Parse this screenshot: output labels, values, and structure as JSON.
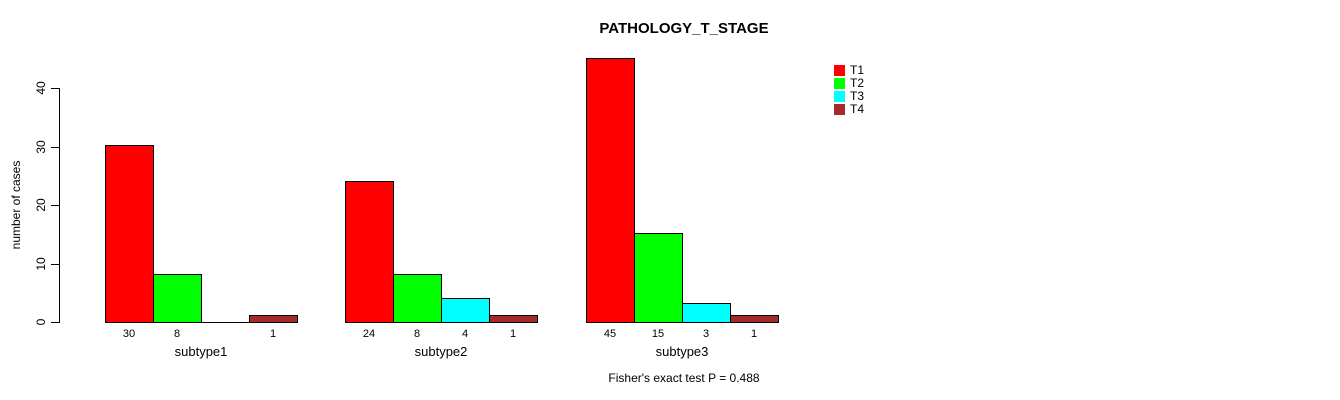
{
  "chart_data": {
    "type": "bar",
    "layout": "grouped",
    "title": "PATHOLOGY_T_STAGE",
    "ylabel": "number of cases",
    "xlabel": "",
    "categories": [
      "subtype1",
      "subtype2",
      "subtype3"
    ],
    "series": [
      {
        "name": "T1",
        "color": "#FF0000",
        "values": [
          30,
          24,
          45
        ]
      },
      {
        "name": "T2",
        "color": "#00FF00",
        "values": [
          8,
          8,
          15
        ]
      },
      {
        "name": "T3",
        "color": "#00FFFF",
        "values": [
          0,
          4,
          3
        ]
      },
      {
        "name": "T4",
        "color": "#A52A2A",
        "values": [
          1,
          1,
          1
        ]
      }
    ],
    "value_labels": [
      [
        "30",
        "8",
        "",
        "1"
      ],
      [
        "24",
        "8",
        "4",
        "1"
      ],
      [
        "45",
        "15",
        "3",
        "1"
      ]
    ],
    "yticks": [
      0,
      10,
      20,
      30,
      40
    ],
    "ylim": [
      0,
      45
    ],
    "grid": false,
    "legend": {
      "position": "top-right",
      "entries": [
        "T1",
        "T2",
        "T3",
        "T4"
      ]
    },
    "annotation": "Fisher's exact test P = 0.488"
  }
}
